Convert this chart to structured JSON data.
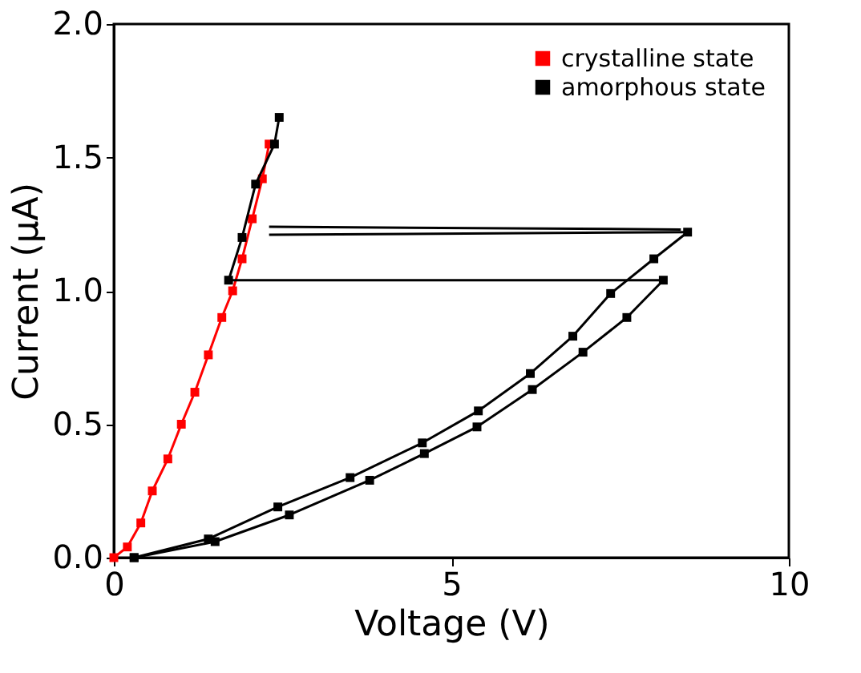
{
  "chart_data": {
    "type": "line",
    "xlabel": "Voltage (V)",
    "ylabel": "Current (μA)",
    "xlim": [
      0,
      10
    ],
    "ylim": [
      0,
      2.0
    ],
    "xticks": [
      0,
      5,
      10
    ],
    "yticks": [
      {
        "value": 0,
        "label": "0.0"
      },
      0.5,
      {
        "value": 1,
        "label": "1.0"
      },
      1.5,
      {
        "value": 2,
        "label": "2.0"
      }
    ],
    "series": [
      {
        "name": "crystalline state",
        "color": "#ff0000",
        "x": [
          0,
          0.2,
          0.4,
          0.57,
          0.8,
          1.0,
          1.2,
          1.4,
          1.6,
          1.76,
          1.9,
          2.05,
          2.2,
          2.3
        ],
        "values": [
          0,
          0.04,
          0.13,
          0.25,
          0.37,
          0.5,
          0.62,
          0.76,
          0.9,
          1.0,
          1.12,
          1.27,
          1.42,
          1.55
        ]
      },
      {
        "name": "amorphous state",
        "color": "#000000",
        "x": [
          0.3,
          1.4,
          2.43,
          3.5,
          4.57,
          5.4,
          6.17,
          6.8,
          7.36,
          8.0,
          8.5
        ],
        "values": [
          0,
          0.07,
          0.19,
          0.3,
          0.43,
          0.55,
          0.69,
          0.83,
          0.99,
          1.12,
          1.22
        ]
      },
      {
        "color": "#000000",
        "x": [
          0.3,
          1.5,
          2.6,
          3.79,
          4.6,
          5.38,
          6.2,
          6.95,
          7.6,
          8.14
        ],
        "values": [
          0,
          0.06,
          0.16,
          0.29,
          0.39,
          0.49,
          0.63,
          0.77,
          0.9,
          1.04
        ]
      },
      {
        "color": "#000000",
        "x": [
          1.7,
          1.9,
          2.1,
          2.38,
          2.45
        ],
        "values": [
          1.04,
          1.2,
          1.4,
          1.55,
          1.65
        ]
      },
      {
        "color": "#000000",
        "marker": "none",
        "x": [
          2.3,
          8.4
        ],
        "values": [
          1.24,
          1.23
        ]
      },
      {
        "color": "#000000",
        "marker": "none",
        "x": [
          2.3,
          8.5
        ],
        "values": [
          1.21,
          1.22
        ]
      },
      {
        "color": "#000000",
        "marker": "none",
        "x": [
          1.7,
          8.14
        ],
        "values": [
          1.04,
          1.04
        ]
      }
    ],
    "legend": "top right",
    "marker": "square",
    "line_style": "solid",
    "grid": false
  }
}
